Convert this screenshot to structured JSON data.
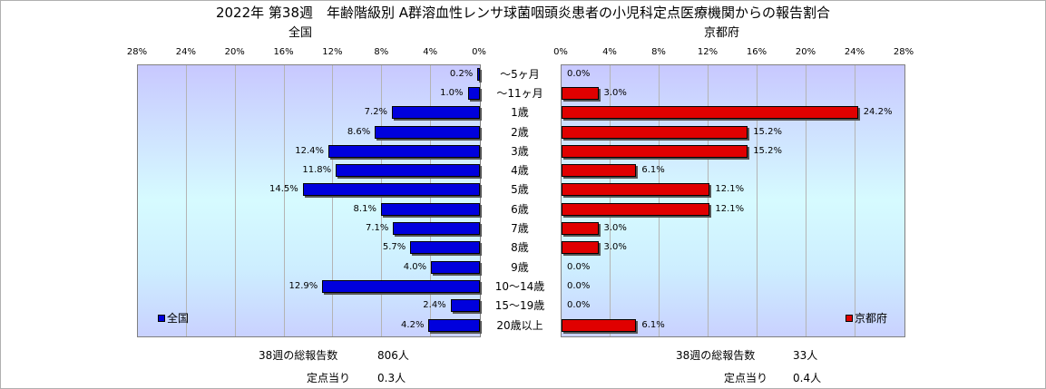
{
  "title": "2022年 第38週　年齢階級別 A群溶血性レンサ球菌咽頭炎患者の小児科定点医療機関からの報告割合",
  "chart_data": [
    {
      "type": "bar",
      "orientation": "horizontal",
      "direction": "right-to-left",
      "title": "全国",
      "legend": "全国",
      "legend_position": "bottom-left",
      "xlim": [
        0,
        28
      ],
      "ticks": [
        "28%",
        "24%",
        "20%",
        "16%",
        "12%",
        "8%",
        "4%",
        "0%"
      ],
      "categories": [
        "～5ヶ月",
        "～11ヶ月",
        "1歳",
        "2歳",
        "3歳",
        "4歳",
        "5歳",
        "6歳",
        "7歳",
        "8歳",
        "9歳",
        "10～14歳",
        "15～19歳",
        "20歳以上"
      ],
      "values": [
        0.2,
        1.0,
        7.2,
        8.6,
        12.4,
        11.8,
        14.5,
        8.1,
        7.1,
        5.7,
        4.0,
        12.9,
        2.4,
        4.2
      ],
      "labels": [
        "0.2%",
        "1.0%",
        "7.2%",
        "8.6%",
        "12.4%",
        "11.8%",
        "14.5%",
        "8.1%",
        "7.1%",
        "5.7%",
        "4.0%",
        "12.9%",
        "2.4%",
        "4.2%"
      ],
      "color": "#0000dd"
    },
    {
      "type": "bar",
      "orientation": "horizontal",
      "direction": "left-to-right",
      "title": "京都府",
      "legend": "京都府",
      "legend_position": "bottom-right",
      "xlim": [
        0,
        28
      ],
      "ticks": [
        "0%",
        "4%",
        "8%",
        "12%",
        "16%",
        "20%",
        "24%",
        "28%"
      ],
      "categories": [
        "～5ヶ月",
        "～11ヶ月",
        "1歳",
        "2歳",
        "3歳",
        "4歳",
        "5歳",
        "6歳",
        "7歳",
        "8歳",
        "9歳",
        "10～14歳",
        "15～19歳",
        "20歳以上"
      ],
      "values": [
        0.0,
        3.0,
        24.2,
        15.2,
        15.2,
        6.1,
        12.1,
        12.1,
        3.0,
        3.0,
        0.0,
        0.0,
        0.0,
        6.1
      ],
      "labels": [
        "0.0%",
        "3.0%",
        "24.2%",
        "15.2%",
        "15.2%",
        "6.1%",
        "12.1%",
        "12.1%",
        "3.0%",
        "3.0%",
        "0.0%",
        "0.0%",
        "0.0%",
        "6.1%"
      ],
      "color": "#e00000"
    }
  ],
  "footer": {
    "national": {
      "total_label": "38週の総報告数",
      "total_value": "806人",
      "per_label": "定点当り",
      "per_value": "0.3人"
    },
    "kyoto": {
      "total_label": "38週の総報告数",
      "total_value": "33人",
      "per_label": "定点当り",
      "per_value": "0.4人"
    }
  }
}
